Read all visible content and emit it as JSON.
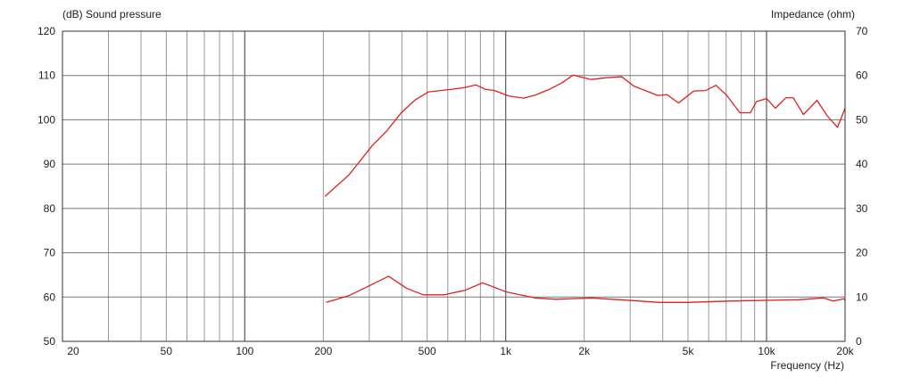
{
  "chart_data": {
    "type": "line",
    "title": "",
    "ylabel_left": "(dB)  Sound pressure",
    "ylabel_right": "Impedance  (ohm)",
    "xlabel": "Frequency  (Hz)",
    "x_scale": "log",
    "xlim": [
      20,
      20000
    ],
    "ylim_left": [
      50,
      120
    ],
    "ylim_right": [
      0,
      70
    ],
    "grid": true,
    "x_ticks": [
      {
        "value": 20,
        "label": "20"
      },
      {
        "value": 50,
        "label": "50"
      },
      {
        "value": 100,
        "label": "100"
      },
      {
        "value": 200,
        "label": "200"
      },
      {
        "value": 500,
        "label": "500"
      },
      {
        "value": 1000,
        "label": "1k"
      },
      {
        "value": 2000,
        "label": "2k"
      },
      {
        "value": 5000,
        "label": "5k"
      },
      {
        "value": 10000,
        "label": "10k"
      },
      {
        "value": 20000,
        "label": "20k"
      }
    ],
    "y_ticks_left": [
      "50",
      "60",
      "70",
      "80",
      "90",
      "100",
      "110",
      "120"
    ],
    "y_ticks_right": [
      "0",
      "10",
      "20",
      "30",
      "40",
      "50",
      "60",
      "70"
    ],
    "colors": {
      "curve": "#e02020",
      "grid": "#9a9a9a",
      "frame": "#333333"
    },
    "series": [
      {
        "axis": "left",
        "x": [
          203,
          250,
          308,
          350,
          398,
          450,
          506,
          624,
          700,
          768,
          833,
          908,
          1025,
          1169,
          1300,
          1475,
          1650,
          1813,
          2128,
          2425,
          2790,
          3100,
          3830,
          4150,
          4600,
          5260,
          5840,
          6400,
          7020,
          7900,
          8670,
          9140,
          10000,
          10800,
          11860,
          12650,
          13860,
          15600,
          17100,
          18700,
          20000
        ],
        "y": [
          82.7,
          87.5,
          94.2,
          97.5,
          101.6,
          104.5,
          106.3,
          106.9,
          107.3,
          107.9,
          106.9,
          106.6,
          105.4,
          104.9,
          105.6,
          106.9,
          108.4,
          110.1,
          109.1,
          109.5,
          109.7,
          107.6,
          105.5,
          105.7,
          103.8,
          106.5,
          106.6,
          107.8,
          105.6,
          101.6,
          101.6,
          104.1,
          104.8,
          102.6,
          105.0,
          105.0,
          101.2,
          104.4,
          100.9,
          98.3,
          102.6
        ]
      },
      {
        "axis": "right",
        "x": [
          205,
          250,
          294,
          356,
          416,
          483,
          580,
          697,
          816,
          1012,
          1297,
          1558,
          2130,
          3090,
          3890,
          4990,
          7220,
          13300,
          16500,
          18000,
          19800,
          20000
        ],
        "y": [
          8.8,
          10.3,
          12.3,
          14.7,
          12.0,
          10.5,
          10.5,
          11.5,
          13.2,
          11.1,
          9.8,
          9.5,
          9.8,
          9.2,
          8.8,
          8.8,
          9.1,
          9.4,
          9.8,
          9.1,
          9.6,
          9.2
        ]
      }
    ]
  }
}
